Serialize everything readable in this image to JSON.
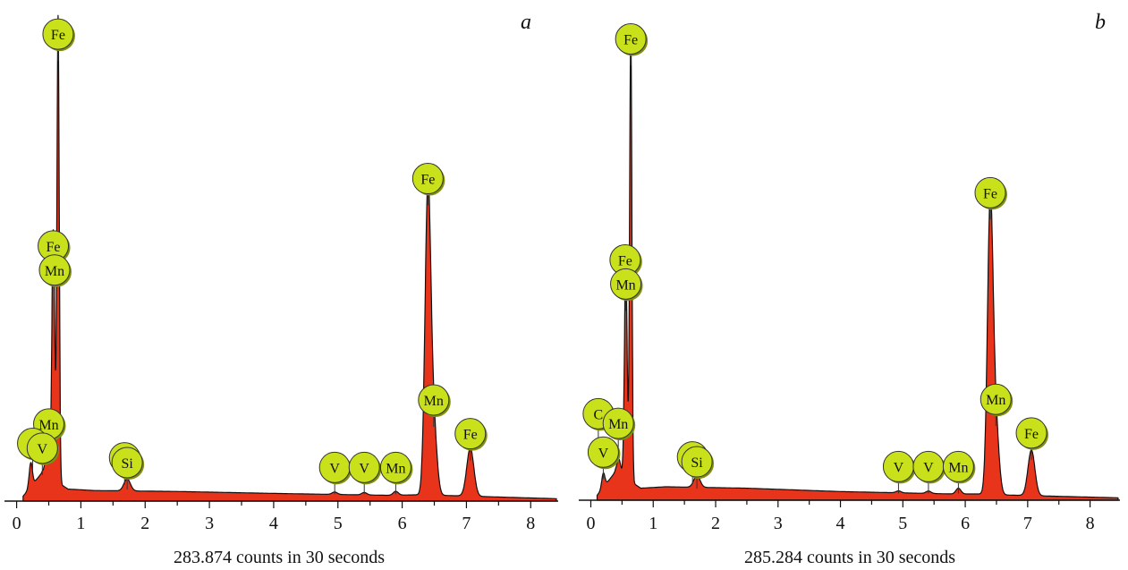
{
  "chart_data": [
    {
      "type": "area",
      "panel_label": "a",
      "xlabel": "283.874 counts in 30 seconds",
      "ylabel": "",
      "xlim": [
        -0.05,
        8.4
      ],
      "ylim": [
        0,
        100
      ],
      "x_ticks": [
        0,
        1,
        2,
        3,
        4,
        5,
        6,
        7,
        8
      ],
      "baseline": 2,
      "continuum": [
        [
          0.1,
          1
        ],
        [
          0.4,
          6
        ],
        [
          0.8,
          2.5
        ],
        [
          1.2,
          2.2
        ],
        [
          2.5,
          2.0
        ],
        [
          4.0,
          1.6
        ],
        [
          5.8,
          1.2
        ],
        [
          6.2,
          1.3
        ],
        [
          6.6,
          1.2
        ],
        [
          8.4,
          0.5
        ]
      ],
      "peaks": [
        {
          "x": 0.22,
          "height": 5,
          "width": 0.025
        },
        {
          "x": 0.47,
          "height": 4,
          "width": 0.03
        },
        {
          "x": 0.57,
          "height": 52,
          "width": 0.022
        },
        {
          "x": 0.645,
          "height": 97,
          "width": 0.018
        },
        {
          "x": 1.72,
          "height": 2.5,
          "width": 0.05
        },
        {
          "x": 4.95,
          "height": 0.5,
          "width": 0.04
        },
        {
          "x": 5.41,
          "height": 0.5,
          "width": 0.04
        },
        {
          "x": 5.9,
          "height": 0.8,
          "width": 0.04
        },
        {
          "x": 6.4,
          "height": 63,
          "width": 0.045
        },
        {
          "x": 6.49,
          "height": 14,
          "width": 0.05
        },
        {
          "x": 7.06,
          "height": 10,
          "width": 0.055
        }
      ],
      "markers": [
        {
          "label": "Fe",
          "x": 0.645,
          "y": 97
        },
        {
          "label": "Fe",
          "x": 0.57,
          "y": 53
        },
        {
          "label": "Mn",
          "x": 0.59,
          "y": 48
        },
        {
          "label": "Mn",
          "x": 0.5,
          "y": 16
        },
        {
          "label": "C",
          "x": 0.25,
          "y": 12
        },
        {
          "label": "V",
          "x": 0.4,
          "y": 11
        },
        {
          "label": "Si",
          "x": 1.68,
          "y": 9
        },
        {
          "label": "Si",
          "x": 1.72,
          "y": 8
        },
        {
          "label": "V",
          "x": 4.95,
          "y": 7
        },
        {
          "label": "V",
          "x": 5.41,
          "y": 7
        },
        {
          "label": "Mn",
          "x": 5.9,
          "y": 7
        },
        {
          "label": "Fe",
          "x": 6.4,
          "y": 67
        },
        {
          "label": "Mn",
          "x": 6.49,
          "y": 21
        },
        {
          "label": "Fe",
          "x": 7.06,
          "y": 14
        }
      ]
    },
    {
      "type": "area",
      "panel_label": "b",
      "xlabel": "285.284 counts in 30 seconds",
      "ylabel": "",
      "xlim": [
        -0.05,
        8.45
      ],
      "ylim": [
        0,
        100
      ],
      "x_ticks": [
        0,
        1,
        2,
        3,
        4,
        5,
        6,
        7,
        8
      ],
      "baseline": 2,
      "continuum": [
        [
          0.1,
          1
        ],
        [
          0.4,
          6
        ],
        [
          0.8,
          2.5
        ],
        [
          1.2,
          2.8
        ],
        [
          2.5,
          2.5
        ],
        [
          4.0,
          1.8
        ],
        [
          5.8,
          1.3
        ],
        [
          6.2,
          1.3
        ],
        [
          6.6,
          1.1
        ],
        [
          8.45,
          0.5
        ]
      ],
      "peaks": [
        {
          "x": 0.2,
          "height": 3,
          "width": 0.025
        },
        {
          "x": 0.45,
          "height": 3,
          "width": 0.03
        },
        {
          "x": 0.56,
          "height": 44,
          "width": 0.022
        },
        {
          "x": 0.64,
          "height": 95,
          "width": 0.018
        },
        {
          "x": 1.7,
          "height": 2.5,
          "width": 0.05
        },
        {
          "x": 4.93,
          "height": 0.4,
          "width": 0.04
        },
        {
          "x": 5.41,
          "height": 0.5,
          "width": 0.04
        },
        {
          "x": 5.89,
          "height": 1.2,
          "width": 0.04
        },
        {
          "x": 6.4,
          "height": 60,
          "width": 0.045
        },
        {
          "x": 6.49,
          "height": 14,
          "width": 0.05
        },
        {
          "x": 7.06,
          "height": 9.5,
          "width": 0.055
        }
      ],
      "markers": [
        {
          "label": "Fe",
          "x": 0.64,
          "y": 96
        },
        {
          "label": "Fe",
          "x": 0.55,
          "y": 50
        },
        {
          "label": "Mn",
          "x": 0.56,
          "y": 45
        },
        {
          "label": "C",
          "x": 0.12,
          "y": 18
        },
        {
          "label": "Mn",
          "x": 0.44,
          "y": 16
        },
        {
          "label": "V",
          "x": 0.2,
          "y": 10
        },
        {
          "label": "Si",
          "x": 1.63,
          "y": 9
        },
        {
          "label": "Si",
          "x": 1.7,
          "y": 8
        },
        {
          "label": "V",
          "x": 4.93,
          "y": 7
        },
        {
          "label": "V",
          "x": 5.41,
          "y": 7
        },
        {
          "label": "Mn",
          "x": 5.89,
          "y": 7
        },
        {
          "label": "Fe",
          "x": 6.4,
          "y": 64
        },
        {
          "label": "Mn",
          "x": 6.49,
          "y": 21
        },
        {
          "label": "Fe",
          "x": 7.06,
          "y": 14
        }
      ]
    }
  ],
  "colors": {
    "fill": "#e8341a",
    "outline": "#111111",
    "badge_fill": "#c9e11a",
    "badge_stroke": "#333333",
    "axis": "#111111"
  }
}
